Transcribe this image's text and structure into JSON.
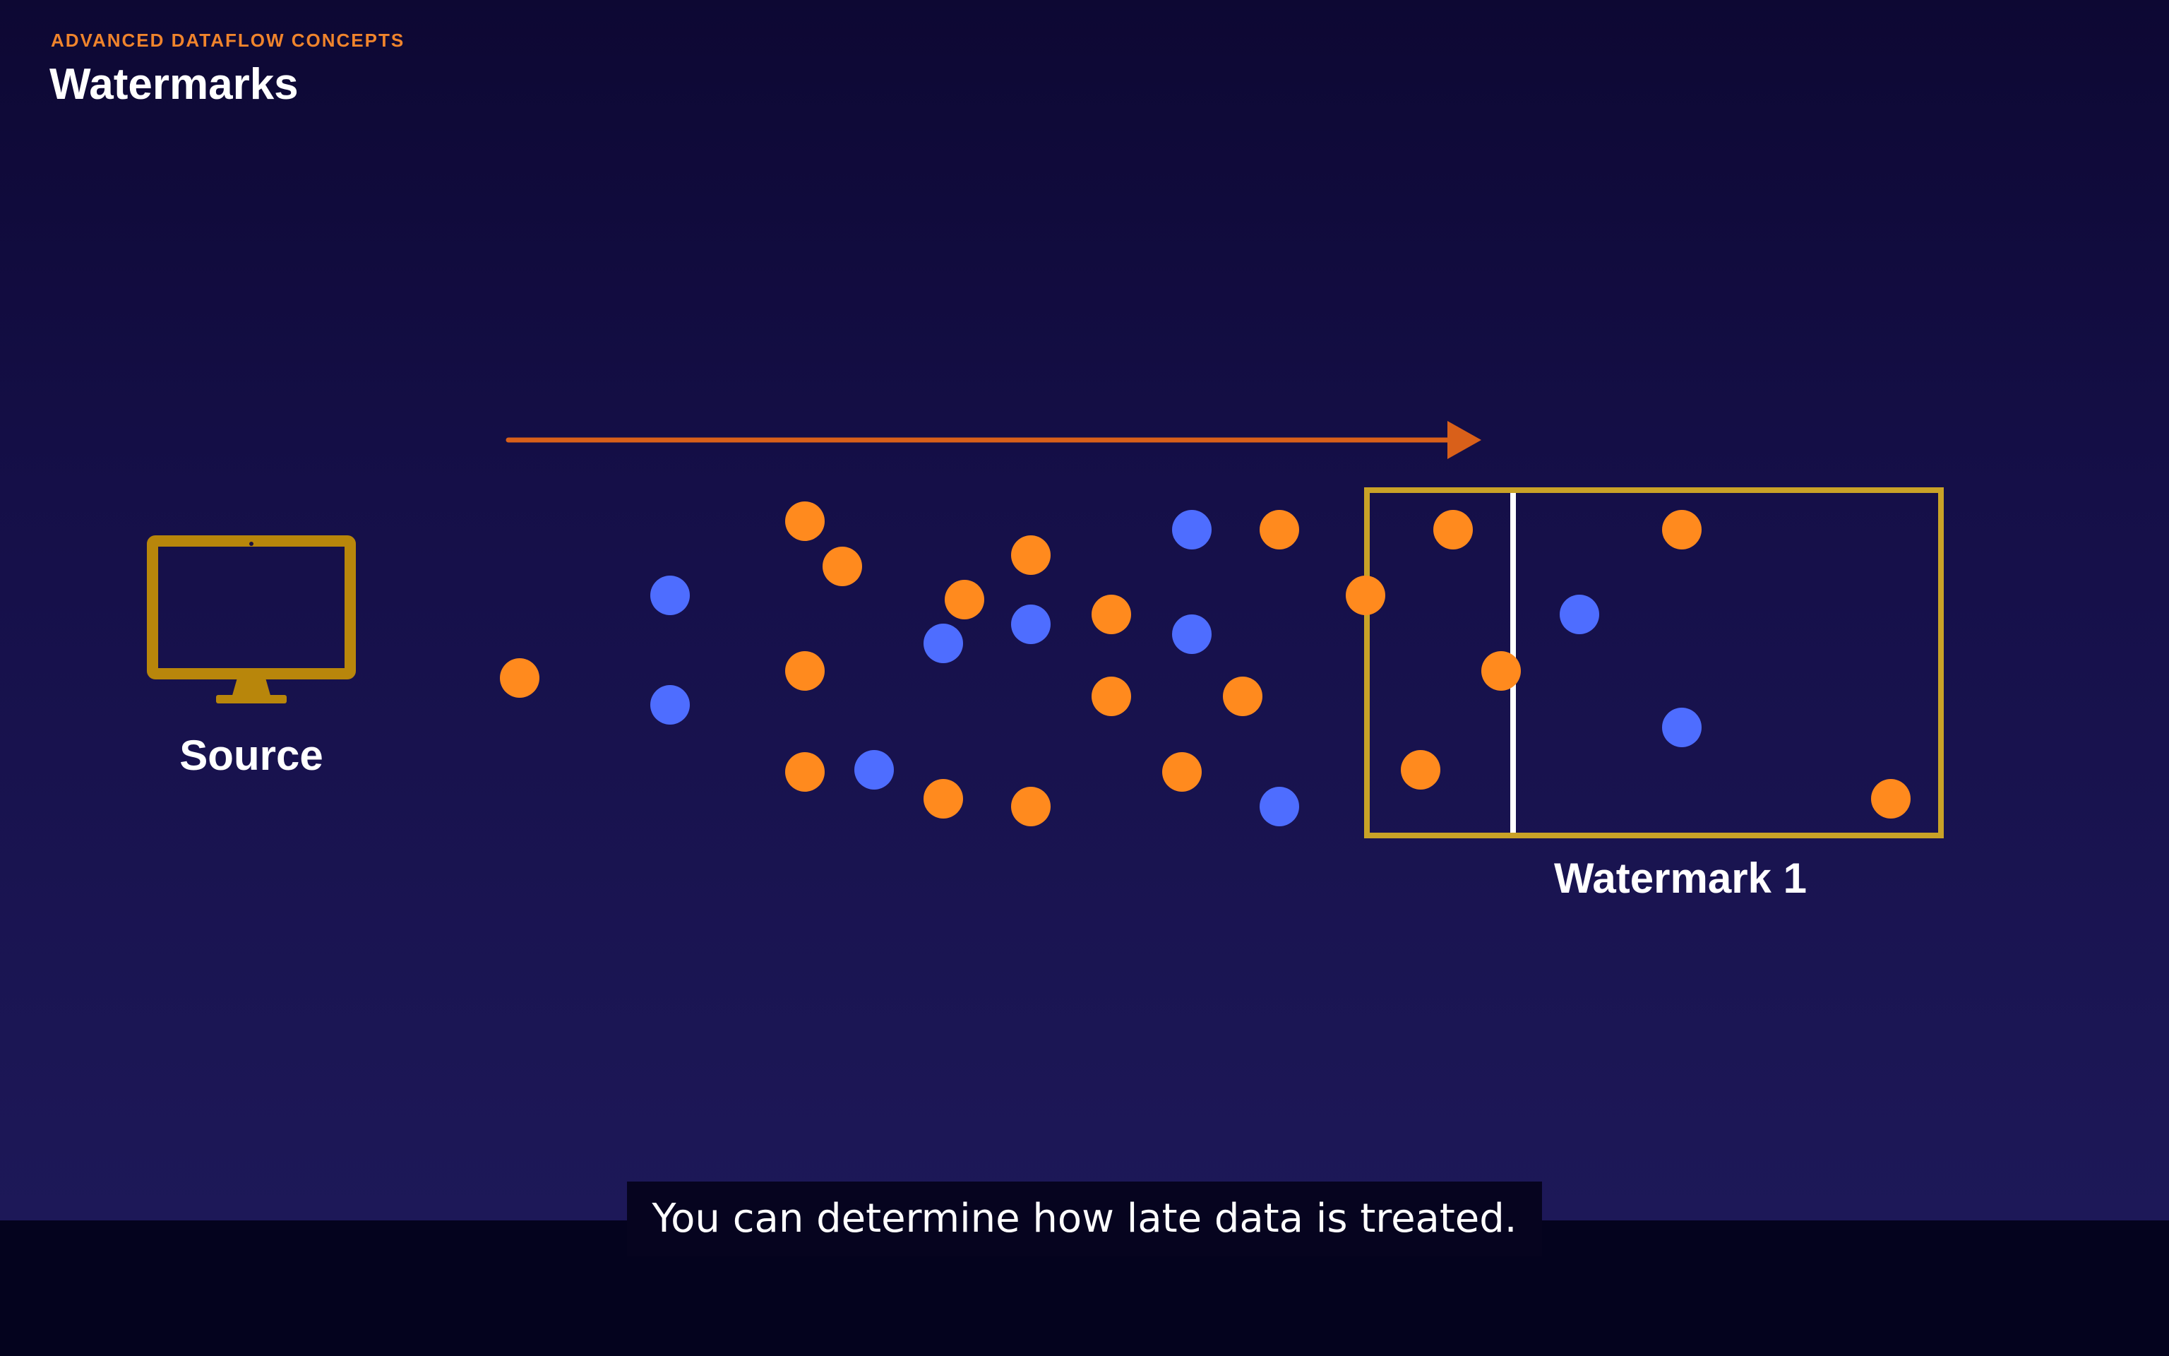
{
  "header": {
    "eyebrow": "ADVANCED DATAFLOW CONCEPTS",
    "title": "Watermarks"
  },
  "diagram": {
    "source_label": "Source",
    "watermark_label": "Watermark 1",
    "colors": {
      "orange_event": "#ff8a1e",
      "blue_event": "#4e6dff",
      "monitor": "#b8860b",
      "window_border": "#c9a227",
      "arrow": "#e0621b",
      "watermark_line": "#ffffff"
    }
  },
  "caption": {
    "text": "You can determine how late data is treated."
  }
}
